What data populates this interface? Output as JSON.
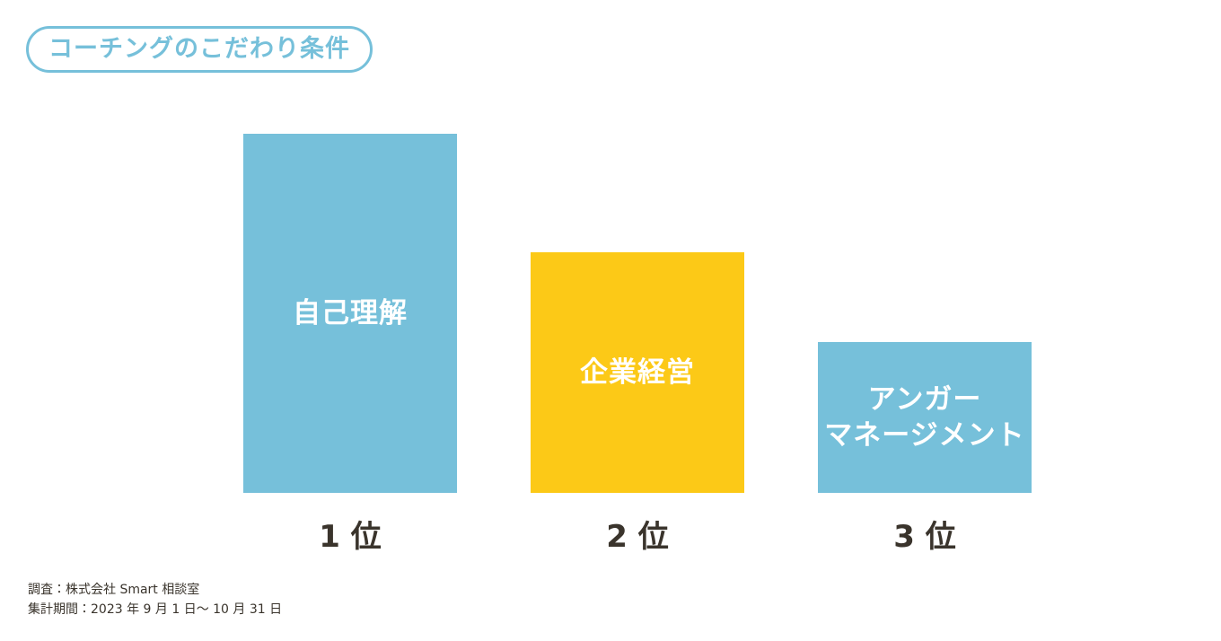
{
  "chart_data": {
    "type": "bar",
    "title": "コーチングのこだわり条件",
    "categories": [
      "1 位",
      "2 位",
      "3 位"
    ],
    "bar_labels": [
      "自己理解",
      "企業経営",
      "アンガー\nマネージメント"
    ],
    "values": [
      100,
      67,
      42
    ],
    "colors": [
      "#76c0da",
      "#fcc917",
      "#76c0da"
    ],
    "ylim": [
      0,
      100
    ],
    "notes": [
      "調査：株式会社 Smart 相談室",
      "集計期間：2023 年 9 月 1 日〜 10 月 31 日"
    ]
  }
}
